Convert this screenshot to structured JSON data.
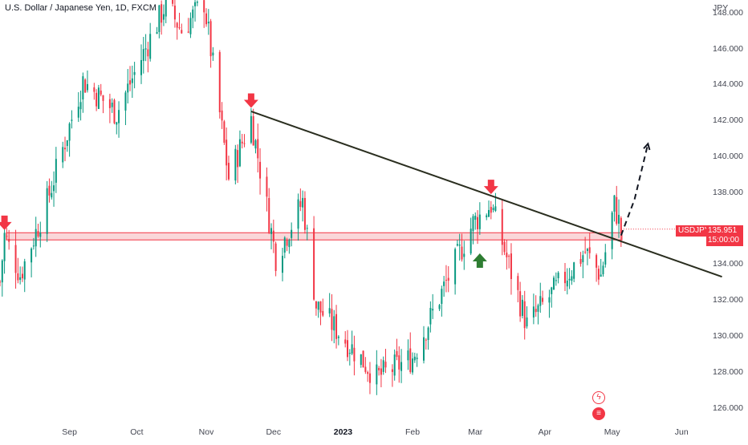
{
  "header": {
    "title": "U.S. Dollar / Japanese Yen, 1D, FXCM",
    "currency": "JPY"
  },
  "price_tag": {
    "symbol": "USDJPY",
    "price": "135.951",
    "countdown": "15:00:00"
  },
  "colors": {
    "up": "#089981",
    "down": "#f23645",
    "trendline": "#2a2e1f",
    "zone_fill": "#f8c9cc",
    "zone_border": "#f23645",
    "arrow_down": "#f23645",
    "arrow_up": "#2e7d32"
  },
  "icons": [
    "lightning-icon",
    "events-icon",
    "arrow-down-icon",
    "arrow-up-icon"
  ],
  "chart_data": {
    "type": "candlestick",
    "symbol": "USDJPY",
    "interval": "1D",
    "source": "FXCM",
    "ylim": [
      125.5,
      148.7
    ],
    "y_ticks": [
      126,
      128,
      130,
      132,
      134,
      136,
      138,
      140,
      142,
      144,
      146,
      148
    ],
    "y_tick_labels": [
      "126.000",
      "128.000",
      "130.000",
      "132.000",
      "134.000",
      "136.000",
      "138.000",
      "140.000",
      "142.000",
      "144.000",
      "146.000",
      "148.000"
    ],
    "x_ticks": [
      "Sep",
      "Oct",
      "Nov",
      "Dec",
      "2023",
      "Feb",
      "Mar",
      "Apr",
      "May",
      "Jun"
    ],
    "x_tick_dates": [
      "2022-09-01",
      "2022-10-01",
      "2022-11-01",
      "2022-12-01",
      "2023-01-01",
      "2023-02-01",
      "2023-03-01",
      "2023-04-01",
      "2023-05-01",
      "2023-06-01"
    ],
    "xlim": [
      "2022-08-01",
      "2023-06-12"
    ],
    "grid": false,
    "last_price": 135.951,
    "support_zone": {
      "low": 135.35,
      "high": 135.75
    },
    "trendline": {
      "start": {
        "date": "2022-11-21",
        "price": 142.5
      },
      "end": {
        "date": "2023-06-19",
        "price": 133.3
      }
    },
    "projection": [
      {
        "date": "2023-05-05",
        "price": 135.6
      },
      {
        "date": "2023-05-11",
        "price": 137.6
      },
      {
        "date": "2023-05-17",
        "price": 140.7
      }
    ],
    "markers": [
      {
        "type": "arrow-down",
        "date": "2022-08-03",
        "price": 135.9
      },
      {
        "type": "arrow-down",
        "date": "2022-11-21",
        "price": 142.7
      },
      {
        "type": "arrow-down",
        "date": "2023-03-08",
        "price": 137.9
      },
      {
        "type": "arrow-up",
        "date": "2023-03-03",
        "price": 134.6
      }
    ],
    "anchors": [
      {
        "date": "2022-08-01",
        "price": 133.0
      },
      {
        "date": "2022-08-03",
        "price": 135.6
      },
      {
        "date": "2022-08-10",
        "price": 133.4
      },
      {
        "date": "2022-08-22",
        "price": 137.5
      },
      {
        "date": "2022-09-07",
        "price": 144.2
      },
      {
        "date": "2022-09-22",
        "price": 142.4
      },
      {
        "date": "2022-10-14",
        "price": 148.5
      },
      {
        "date": "2022-10-21",
        "price": 147.0
      },
      {
        "date": "2022-10-31",
        "price": 148.6
      },
      {
        "date": "2022-11-11",
        "price": 138.8
      },
      {
        "date": "2022-11-21",
        "price": 142.1
      },
      {
        "date": "2022-12-02",
        "price": 134.4
      },
      {
        "date": "2022-12-14",
        "price": 137.5
      },
      {
        "date": "2022-12-20",
        "price": 131.7
      },
      {
        "date": "2023-01-16",
        "price": 127.7
      },
      {
        "date": "2023-02-01",
        "price": 128.8
      },
      {
        "date": "2023-02-28",
        "price": 136.3
      },
      {
        "date": "2023-03-08",
        "price": 137.3
      },
      {
        "date": "2023-03-24",
        "price": 130.6
      },
      {
        "date": "2023-04-19",
        "price": 134.7
      },
      {
        "date": "2023-04-26",
        "price": 133.4
      },
      {
        "date": "2023-05-02",
        "price": 137.3
      },
      {
        "date": "2023-05-05",
        "price": 135.9
      }
    ]
  }
}
